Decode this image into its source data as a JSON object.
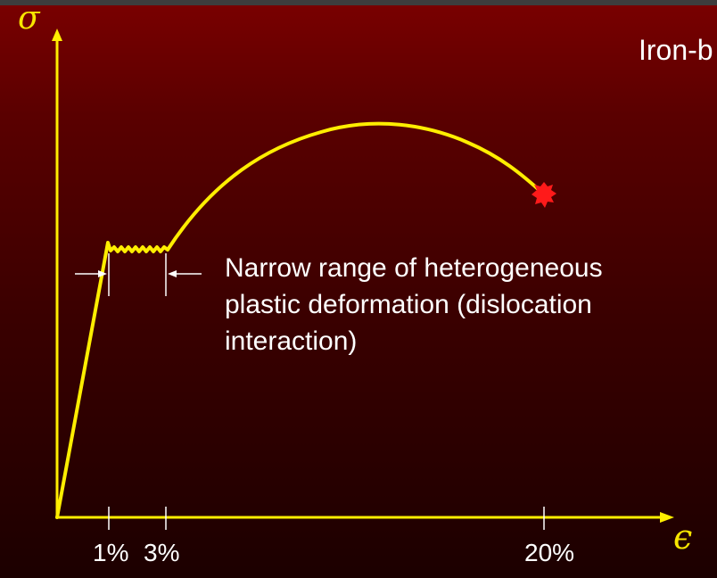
{
  "title_partial": "Iron-b",
  "annotation": {
    "line1": "Narrow range of heterogeneous",
    "line2": "plastic deformation (dislocation",
    "line3": "interaction)"
  },
  "axes": {
    "y_symbol": "σ",
    "x_symbol": "ϵ",
    "x_ticks": [
      "1%",
      "3%",
      "20%"
    ]
  },
  "colors": {
    "curve": "#ffee00",
    "fracture_mark": "#ff1a1a",
    "text": "#ffffff",
    "background_top": "#7a0000",
    "background_bottom": "#1c0000"
  },
  "icons": {
    "fracture": "fracture-burst-icon"
  }
}
